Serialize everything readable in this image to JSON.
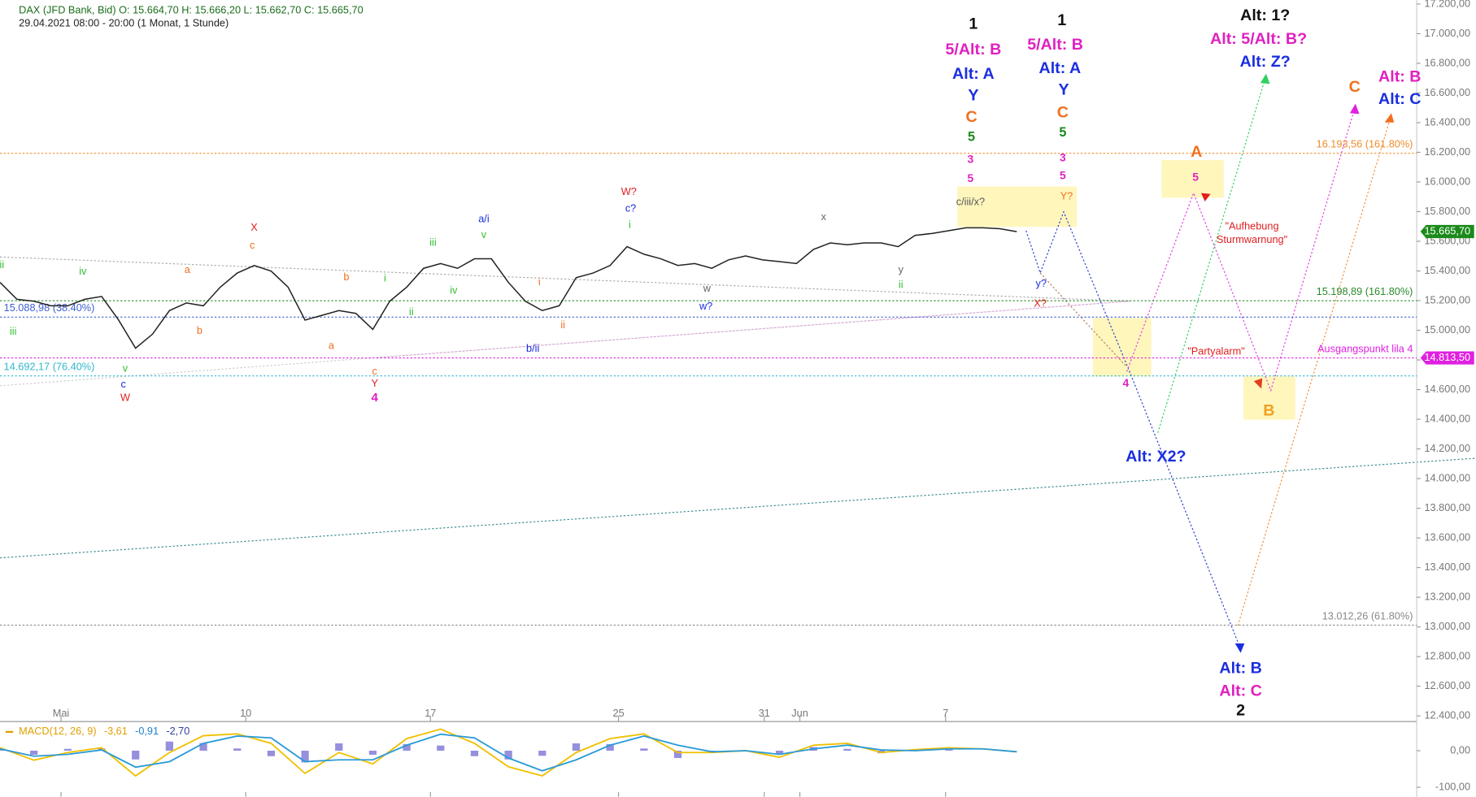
{
  "chart_data": {
    "type": "line",
    "header": {
      "title": "DAX (JFD Bank, Bid)  O: 15.664,70  H: 15.666,20  L: 15.662,70  C: 15.665,70",
      "subtitle": "29.04.2021 08:00 - 20:00  (1 Monat, 1 Stunde)"
    },
    "x": [
      0,
      1,
      2,
      3,
      4,
      5,
      6,
      7,
      8,
      9,
      10,
      11,
      12,
      13,
      14,
      15,
      16,
      17,
      18,
      19,
      20,
      21,
      22,
      23,
      24,
      25,
      26,
      27,
      28,
      29,
      30,
      31,
      32,
      33,
      34,
      35,
      36,
      37,
      38,
      39,
      40,
      41,
      42,
      43,
      44,
      45,
      46,
      47,
      48,
      49,
      50,
      51,
      52,
      53,
      54,
      55,
      56,
      57,
      58,
      59,
      60
    ],
    "series": [
      {
        "name": "DAX",
        "color": "#222222",
        "values": [
          15323,
          15209,
          15196,
          15165,
          15165,
          15209,
          15228,
          15069,
          14879,
          14974,
          15133,
          15184,
          15165,
          15291,
          15386,
          15437,
          15399,
          15291,
          15069,
          15101,
          15133,
          15114,
          15006,
          15196,
          15291,
          15418,
          15450,
          15418,
          15482,
          15482,
          15323,
          15196,
          15133,
          15165,
          15355,
          15386,
          15437,
          15564,
          15513,
          15482,
          15437,
          15450,
          15418,
          15475,
          15501,
          15475,
          15463,
          15450,
          15545,
          15589,
          15577,
          15589,
          15589,
          15564,
          15640,
          15653,
          15672,
          15691,
          15691,
          15685,
          15665
        ]
      }
    ],
    "xlim": [
      0,
      83.6
    ],
    "xticks": [
      {
        "value": 3.6,
        "label": "Mai"
      },
      {
        "value": 14.5,
        "label": "10"
      },
      {
        "value": 25.4,
        "label": "17"
      },
      {
        "value": 36.5,
        "label": "25"
      },
      {
        "value": 45.1,
        "label": "31"
      },
      {
        "value": 47.2,
        "label": "Jun"
      },
      {
        "value": 55.8,
        "label": "7"
      }
    ],
    "ylim": [
      12400,
      17200
    ],
    "yticks": [
      {
        "value": 12400,
        "label": "12.400,00"
      },
      {
        "value": 12600,
        "label": "12.600,00"
      },
      {
        "value": 12800,
        "label": "12.800,00"
      },
      {
        "value": 13000,
        "label": "13.000,00"
      },
      {
        "value": 13200,
        "label": "13.200,00"
      },
      {
        "value": 13400,
        "label": "13.400,00"
      },
      {
        "value": 13600,
        "label": "13.600,00"
      },
      {
        "value": 13800,
        "label": "13.800,00"
      },
      {
        "value": 14000,
        "label": "14.000,00"
      },
      {
        "value": 14200,
        "label": "14.200,00"
      },
      {
        "value": 14400,
        "label": "14.400,00"
      },
      {
        "value": 14600,
        "label": "14.600,00"
      },
      {
        "value": 14800,
        "label": "14.800,00"
      },
      {
        "value": 15000,
        "label": "15.000,00"
      },
      {
        "value": 15200,
        "label": "15.200,00"
      },
      {
        "value": 15400,
        "label": "15.400,00"
      },
      {
        "value": 15600,
        "label": "15.600,00"
      },
      {
        "value": 15800,
        "label": "15.800,00"
      },
      {
        "value": 16000,
        "label": "16.000,00"
      },
      {
        "value": 16200,
        "label": "16.200,00"
      },
      {
        "value": 16400,
        "label": "16.400,00"
      },
      {
        "value": 16600,
        "label": "16.600,00"
      },
      {
        "value": 16800,
        "label": "16.800,00"
      },
      {
        "value": 17000,
        "label": "17.000,00"
      },
      {
        "value": 17200,
        "label": "17.200,00"
      }
    ],
    "last_price": {
      "value": 15665.7,
      "label": "15.665,70",
      "color": "#1a8a1a"
    },
    "levels": [
      {
        "value": 16193.56,
        "label": "16.193,56 (161.80%)",
        "color": "#f08c28"
      },
      {
        "value": 15198.89,
        "label": "15.198,89 (161.80%)",
        "color": "#2a8a2a"
      },
      {
        "value": 15088.98,
        "label": "15.088,98 (38.40%)",
        "color": "#4060d0"
      },
      {
        "value": 14813.5,
        "label": "Ausgangspunkt lila 4",
        "tag": "14.813,50",
        "color": "#e020e0"
      },
      {
        "value": 14692.17,
        "label": "14.692,17 (76.40%)",
        "color": "#30b8cc"
      },
      {
        "value": 13012.26,
        "label": "13.012,26 (61.80%)",
        "color": "#888888"
      }
    ],
    "annotations": [
      {
        "text": "1",
        "color": "#111111"
      },
      {
        "text": "5/Alt: B",
        "color": "#e020c0"
      },
      {
        "text": "Alt: A",
        "color": "#1a2ee0"
      },
      {
        "text": "Y",
        "color": "#1a2ee0"
      },
      {
        "text": "C",
        "color": "#f07020"
      },
      {
        "text": "5",
        "color": "#1a8a1a"
      },
      {
        "text": "3",
        "color": "#e020c0"
      },
      {
        "text": "5",
        "color": "#e020c0"
      },
      {
        "text": "1",
        "color": "#111111"
      },
      {
        "text": "5/Alt: B",
        "color": "#e020c0"
      },
      {
        "text": "Alt: A",
        "color": "#1a2ee0"
      },
      {
        "text": "Y",
        "color": "#1a2ee0"
      },
      {
        "text": "C",
        "color": "#f07020"
      },
      {
        "text": "5",
        "color": "#1a8a1a"
      },
      {
        "text": "3",
        "color": "#e020c0"
      },
      {
        "text": "5",
        "color": "#e020c0"
      },
      {
        "text": "Alt: 1?",
        "color": "#111111"
      },
      {
        "text": "Alt: 5/Alt: B?",
        "color": "#e020c0"
      },
      {
        "text": "Alt: Z?",
        "color": "#1a2ee0"
      },
      {
        "text": "C",
        "color": "#f07020"
      },
      {
        "text": "Alt: B",
        "color": "#e020c0"
      },
      {
        "text": "Alt: C",
        "color": "#1a2ee0"
      },
      {
        "text": "A",
        "color": "#f07020"
      },
      {
        "text": "5",
        "color": "#e020c0"
      },
      {
        "text": "\"Aufhebung",
        "color": "#e02020"
      },
      {
        "text": "Sturmwarnung\"",
        "color": "#e02020"
      },
      {
        "text": "\"Partyalarm\"",
        "color": "#e02020"
      },
      {
        "text": "4",
        "color": "#e020c0"
      },
      {
        "text": "B",
        "color": "#f0a020"
      },
      {
        "text": "Alt: X2?",
        "color": "#1a2ee0"
      },
      {
        "text": "Alt: B",
        "color": "#1a2ee0"
      },
      {
        "text": "Alt: C",
        "color": "#e020c0"
      },
      {
        "text": "2",
        "color": "#111111"
      },
      {
        "text": "c/iii/x?",
        "color": "#555555"
      },
      {
        "text": "Y?",
        "color": "#f07020"
      },
      {
        "text": "y?",
        "color": "#1a2ee0"
      },
      {
        "text": "X?",
        "color": "#e02020"
      },
      {
        "text": "x",
        "color": "#666666"
      },
      {
        "text": "y",
        "color": "#666666"
      },
      {
        "text": "ii",
        "color": "#30c030"
      },
      {
        "text": "w",
        "color": "#666666"
      },
      {
        "text": "w?",
        "color": "#1a2ee0"
      },
      {
        "text": "W?",
        "color": "#e02020"
      },
      {
        "text": "c?",
        "color": "#1a2ee0"
      },
      {
        "text": "i",
        "color": "#30c030"
      },
      {
        "text": "a/i",
        "color": "#1a2ee0"
      },
      {
        "text": "v",
        "color": "#30c030"
      },
      {
        "text": "iii",
        "color": "#30c030"
      },
      {
        "text": "iv",
        "color": "#30c030"
      },
      {
        "text": "i",
        "color": "#30c030"
      },
      {
        "text": "ii",
        "color": "#30c030"
      },
      {
        "text": "i",
        "color": "#f07020"
      },
      {
        "text": "ii",
        "color": "#f07020"
      },
      {
        "text": "b/ii",
        "color": "#1a2ee0"
      },
      {
        "text": "b",
        "color": "#f07020"
      },
      {
        "text": "a",
        "color": "#f07020"
      },
      {
        "text": "c",
        "color": "#f07020"
      },
      {
        "text": "Y",
        "color": "#e02020"
      },
      {
        "text": "4",
        "color": "#e020c0"
      },
      {
        "text": "X",
        "color": "#e02020"
      },
      {
        "text": "c",
        "color": "#f07020"
      },
      {
        "text": "a",
        "color": "#f07020"
      },
      {
        "text": "b",
        "color": "#f07020"
      },
      {
        "text": "iv",
        "color": "#30c030"
      },
      {
        "text": "v",
        "color": "#30c030"
      },
      {
        "text": "c",
        "color": "#1a2ee0"
      },
      {
        "text": "W",
        "color": "#e02020"
      },
      {
        "text": "iii",
        "color": "#30c030"
      },
      {
        "text": "ii",
        "color": "#30c030"
      }
    ],
    "macd": {
      "legend": [
        {
          "text": "MACD(12, 26, 9)",
          "color": "#e0a000"
        },
        {
          "text": "-3,61",
          "color": "#e0a000"
        },
        {
          "text": "-0,91",
          "color": "#2080d0"
        },
        {
          "text": "-2,70",
          "color": "#3040a0"
        }
      ],
      "x": [
        0,
        2,
        4,
        6,
        8,
        10,
        12,
        14,
        16,
        18,
        20,
        22,
        24,
        26,
        28,
        30,
        32,
        34,
        36,
        38,
        40,
        42,
        44,
        46,
        48,
        50,
        52,
        54,
        56,
        58,
        60
      ],
      "series": [
        {
          "name": "MACD",
          "color": "#f0c000",
          "values": [
            8,
            -26,
            -5,
            8,
            -69,
            -5,
            41,
            46,
            20,
            -62,
            -5,
            -36,
            33,
            59,
            20,
            -44,
            -69,
            -5,
            33,
            46,
            -5,
            -5,
            0,
            -18,
            15,
            20,
            -5,
            3,
            8,
            5,
            -3
          ]
        },
        {
          "name": "Signal",
          "color": "#2a9ad8",
          "values": [
            5,
            -15,
            -10,
            2,
            -45,
            -30,
            20,
            40,
            35,
            -30,
            -25,
            -25,
            15,
            45,
            35,
            -20,
            -55,
            -25,
            15,
            40,
            15,
            -3,
            0,
            -10,
            5,
            15,
            2,
            0,
            5,
            5,
            -3
          ]
        }
      ],
      "ylim": [
        -126,
        72
      ],
      "yticks": [
        {
          "value": 0,
          "label": "0,00"
        },
        {
          "value": -100,
          "label": "-100,00"
        }
      ]
    }
  }
}
